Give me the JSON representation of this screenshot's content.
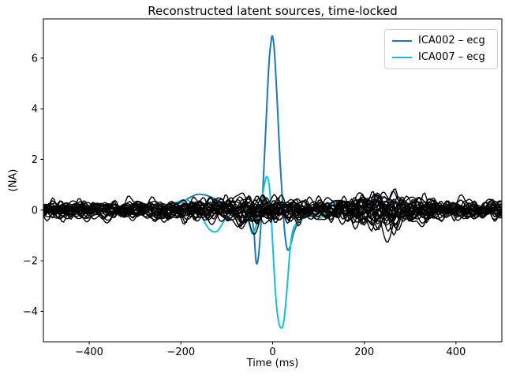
{
  "chart_data": {
    "type": "line",
    "title": "Reconstructed latent sources, time-locked",
    "xlabel": "Time (ms)",
    "ylabel": "(NA)",
    "xlim": [
      -500,
      500
    ],
    "ylim": [
      -5.2,
      7.55
    ],
    "grid": false,
    "xticks": [
      {
        "value": -400,
        "label": "−400"
      },
      {
        "value": -200,
        "label": "−200"
      },
      {
        "value": 0,
        "label": "0"
      },
      {
        "value": 200,
        "label": "200"
      },
      {
        "value": 400,
        "label": "400"
      }
    ],
    "yticks": [
      {
        "value": -4,
        "label": "−4"
      },
      {
        "value": -2,
        "label": "−2"
      },
      {
        "value": 0,
        "label": "0"
      },
      {
        "value": 2,
        "label": "2"
      },
      {
        "value": 4,
        "label": "4"
      },
      {
        "value": 6,
        "label": "6"
      }
    ],
    "legend": {
      "position": "upper right",
      "entries": [
        {
          "label": "ICA002 – ecg",
          "color": "#1f77b4"
        },
        {
          "label": "ICA007 – ecg",
          "color": "#17becf"
        }
      ]
    },
    "series": [
      {
        "name": "ICA002 – ecg",
        "color": "#1f77b4",
        "line_width": 2,
        "points": [
          [
            -500,
            0.1
          ],
          [
            -475,
            0.04
          ],
          [
            -450,
            0.1
          ],
          [
            -425,
            0.02
          ],
          [
            -400,
            0.08
          ],
          [
            -375,
            0.0
          ],
          [
            -350,
            0.06
          ],
          [
            -325,
            0.1
          ],
          [
            -300,
            0.04
          ],
          [
            -275,
            0.1
          ],
          [
            -250,
            0.12
          ],
          [
            -225,
            0.18
          ],
          [
            -200,
            0.3
          ],
          [
            -182,
            0.48
          ],
          [
            -165,
            0.62
          ],
          [
            -148,
            0.6
          ],
          [
            -130,
            0.48
          ],
          [
            -112,
            0.33
          ],
          [
            -95,
            0.2
          ],
          [
            -80,
            0.1
          ],
          [
            -65,
            0.02
          ],
          [
            -55,
            -0.05
          ],
          [
            -47,
            -0.25
          ],
          [
            -41,
            -0.8
          ],
          [
            -36,
            -2.05
          ],
          [
            -31,
            -1.85
          ],
          [
            -26,
            -0.7
          ],
          [
            -21,
            0.9
          ],
          [
            -15,
            3.2
          ],
          [
            -8,
            5.8
          ],
          [
            -3,
            6.7
          ],
          [
            0,
            6.85
          ],
          [
            4,
            6.25
          ],
          [
            10,
            4.3
          ],
          [
            16,
            2.0
          ],
          [
            22,
            0.2
          ],
          [
            27,
            -1.0
          ],
          [
            32,
            -1.55
          ],
          [
            38,
            -1.45
          ],
          [
            46,
            -0.9
          ],
          [
            56,
            -0.48
          ],
          [
            68,
            -0.22
          ],
          [
            82,
            -0.02
          ],
          [
            100,
            0.15
          ],
          [
            120,
            0.26
          ],
          [
            145,
            0.3
          ],
          [
            170,
            0.34
          ],
          [
            195,
            0.4
          ],
          [
            215,
            0.5
          ],
          [
            232,
            0.56
          ],
          [
            250,
            0.45
          ],
          [
            268,
            0.3
          ],
          [
            288,
            0.18
          ],
          [
            310,
            0.08
          ],
          [
            335,
            0.02
          ],
          [
            360,
            0.06
          ],
          [
            385,
            -0.02
          ],
          [
            410,
            0.04
          ],
          [
            435,
            -0.04
          ],
          [
            460,
            0.02
          ],
          [
            480,
            0.06
          ],
          [
            500,
            0.1
          ]
        ]
      },
      {
        "name": "ICA007 – ecg",
        "color": "#17becf",
        "line_width": 2,
        "points": [
          [
            -500,
            -0.05
          ],
          [
            -475,
            0.0
          ],
          [
            -450,
            -0.06
          ],
          [
            -425,
            0.02
          ],
          [
            -400,
            -0.04
          ],
          [
            -375,
            0.02
          ],
          [
            -350,
            -0.05
          ],
          [
            -325,
            0.0
          ],
          [
            -300,
            0.04
          ],
          [
            -275,
            0.02
          ],
          [
            -250,
            0.08
          ],
          [
            -228,
            0.18
          ],
          [
            -208,
            0.32
          ],
          [
            -190,
            0.4
          ],
          [
            -175,
            0.28
          ],
          [
            -162,
            0.0
          ],
          [
            -150,
            -0.42
          ],
          [
            -140,
            -0.72
          ],
          [
            -130,
            -0.85
          ],
          [
            -120,
            -0.82
          ],
          [
            -110,
            -0.55
          ],
          [
            -100,
            -0.22
          ],
          [
            -90,
            -0.05
          ],
          [
            -78,
            0.02
          ],
          [
            -66,
            0.0
          ],
          [
            -58,
            -0.12
          ],
          [
            -51,
            -0.55
          ],
          [
            -45,
            -0.92
          ],
          [
            -39,
            -0.8
          ],
          [
            -32,
            -0.35
          ],
          [
            -25,
            0.3
          ],
          [
            -18,
            1.0
          ],
          [
            -13,
            1.32
          ],
          [
            -8,
            1.05
          ],
          [
            -4,
            0.2
          ],
          [
            0,
            -1.3
          ],
          [
            6,
            -3.2
          ],
          [
            12,
            -4.3
          ],
          [
            18,
            -4.65
          ],
          [
            24,
            -4.45
          ],
          [
            30,
            -3.4
          ],
          [
            36,
            -2.0
          ],
          [
            41,
            -1.1
          ],
          [
            46,
            -0.7
          ],
          [
            54,
            -0.48
          ],
          [
            64,
            -0.35
          ],
          [
            76,
            -0.28
          ],
          [
            90,
            -0.2
          ],
          [
            105,
            -0.28
          ],
          [
            120,
            -0.15
          ],
          [
            135,
            -0.25
          ],
          [
            150,
            -0.12
          ],
          [
            165,
            -0.2
          ],
          [
            180,
            -0.28
          ],
          [
            195,
            -0.33
          ],
          [
            210,
            -0.3
          ],
          [
            225,
            -0.12
          ],
          [
            240,
            0.08
          ],
          [
            255,
            0.14
          ],
          [
            270,
            0.06
          ],
          [
            285,
            -0.04
          ],
          [
            300,
            -0.1
          ],
          [
            320,
            -0.02
          ],
          [
            340,
            0.12
          ],
          [
            360,
            0.16
          ],
          [
            380,
            0.06
          ],
          [
            400,
            -0.04
          ],
          [
            420,
            0.08
          ],
          [
            440,
            0.16
          ],
          [
            460,
            0.08
          ],
          [
            480,
            0.0
          ],
          [
            500,
            0.06
          ]
        ]
      }
    ],
    "background_traces": {
      "description": "remaining unlabeled latent source traces, noise around zero",
      "count": 28,
      "color": "#000000",
      "line_width": 1.4,
      "seed": 7,
      "base_amplitude": 0.15,
      "offset_range": 0.12,
      "sample_step_ms": 4,
      "amplitude_bumps": [
        {
          "center": 235,
          "sigma": 55,
          "gain": 1.15
        },
        {
          "center": -120,
          "sigma": 70,
          "gain": 0.35
        },
        {
          "center": -20,
          "sigma": 45,
          "gain": 0.38
        }
      ]
    },
    "axes_style": {
      "spine_color": "#000000",
      "background": "#ffffff",
      "tick_color": "#000000"
    }
  }
}
